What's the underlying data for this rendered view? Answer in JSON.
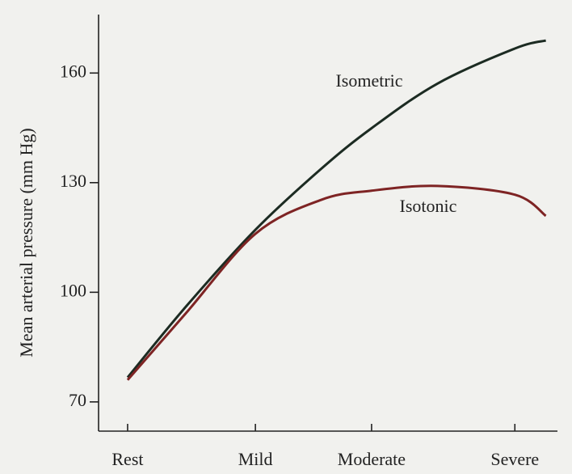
{
  "chart_data": {
    "type": "line",
    "ylabel": "Mean arterial pressure (mm Hg)",
    "xlim": [
      -0.75,
      11.1
    ],
    "xticks": [
      {
        "value": 0,
        "label": "Rest"
      },
      {
        "value": 3.3,
        "label": "Mild"
      },
      {
        "value": 6.3,
        "label": "Moderate"
      },
      {
        "value": 10,
        "label": "Severe"
      }
    ],
    "ylim": [
      62,
      176
    ],
    "yticks": [
      70,
      100,
      130,
      160
    ],
    "legend": "inline",
    "series": [
      {
        "name": "Isometric",
        "color": "#1c2b22",
        "x": [
          0,
          1.5,
          3.3,
          5,
          6.3,
          8,
          10,
          10.8
        ],
        "values": [
          76.7,
          96,
          117.1,
          133.8,
          144.9,
          157.1,
          166.7,
          168.9
        ]
      },
      {
        "name": "Isotonic",
        "color": "#7e2424",
        "x": [
          0,
          1.5,
          3.3,
          5,
          6.3,
          8,
          10,
          10.8
        ],
        "values": [
          76,
          94.2,
          116,
          125.3,
          127.8,
          129.1,
          126.7,
          120.9
        ]
      }
    ]
  }
}
